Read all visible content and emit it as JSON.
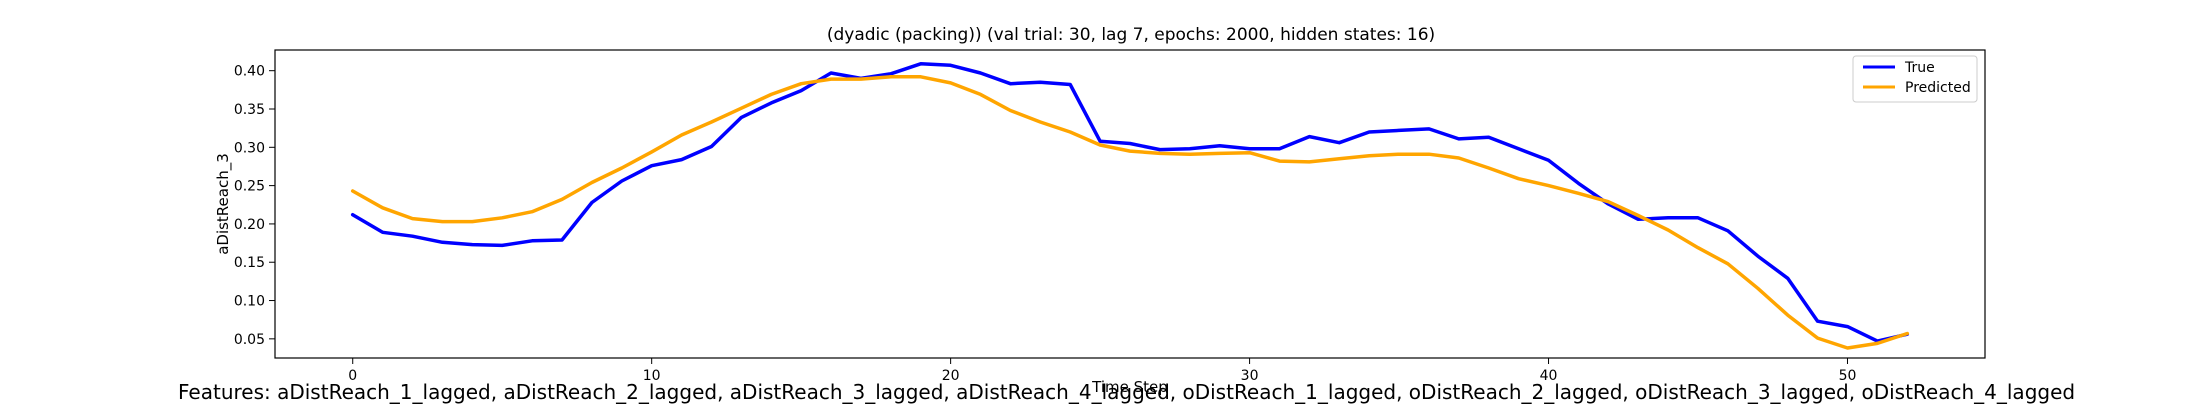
{
  "chart_data": {
    "type": "line",
    "title": "(dyadic (packing)) (val trial: 30, lag 7, epochs: 2000, hidden states: 16)",
    "xlabel": "Time Step",
    "ylabel": "aDistReach_3",
    "xlim": [
      -2.6,
      54.6
    ],
    "ylim": [
      0.025,
      0.427
    ],
    "xticks": [
      0,
      10,
      20,
      30,
      40,
      50
    ],
    "yticks": [
      0.05,
      0.1,
      0.15,
      0.2,
      0.25,
      0.3,
      0.35,
      0.4
    ],
    "legend_position": "top-right",
    "series": [
      {
        "name": "True",
        "color": "#0000ff",
        "values": [
          0.212,
          0.189,
          0.184,
          0.176,
          0.173,
          0.172,
          0.178,
          0.179,
          0.228,
          0.256,
          0.276,
          0.284,
          0.301,
          0.339,
          0.358,
          0.374,
          0.397,
          0.39,
          0.396,
          0.409,
          0.407,
          0.397,
          0.383,
          0.385,
          0.382,
          0.308,
          0.305,
          0.297,
          0.298,
          0.302,
          0.298,
          0.298,
          0.314,
          0.306,
          0.32,
          0.322,
          0.324,
          0.311,
          0.313,
          0.298,
          0.283,
          0.253,
          0.226,
          0.206,
          0.208,
          0.208,
          0.191,
          0.158,
          0.129,
          0.073,
          0.066,
          0.047,
          0.056
        ]
      },
      {
        "name": "Predicted",
        "color": "#ffa500",
        "values": [
          0.243,
          0.221,
          0.207,
          0.203,
          0.203,
          0.208,
          0.216,
          0.232,
          0.254,
          0.273,
          0.294,
          0.316,
          0.333,
          0.351,
          0.369,
          0.383,
          0.389,
          0.389,
          0.392,
          0.392,
          0.384,
          0.369,
          0.348,
          0.333,
          0.32,
          0.303,
          0.295,
          0.292,
          0.291,
          0.292,
          0.293,
          0.282,
          0.281,
          0.285,
          0.289,
          0.291,
          0.291,
          0.286,
          0.273,
          0.259,
          0.25,
          0.24,
          0.229,
          0.211,
          0.192,
          0.169,
          0.148,
          0.116,
          0.081,
          0.051,
          0.038,
          0.044,
          0.057
        ]
      }
    ]
  },
  "caption": {
    "features": "Features: aDistReach_1_lagged, aDistReach_2_lagged, aDistReach_3_lagged, aDistReach_4_lagged, oDistReach_1_lagged, oDistReach_2_lagged, oDistReach_3_lagged, oDistReach_4_lagged"
  }
}
